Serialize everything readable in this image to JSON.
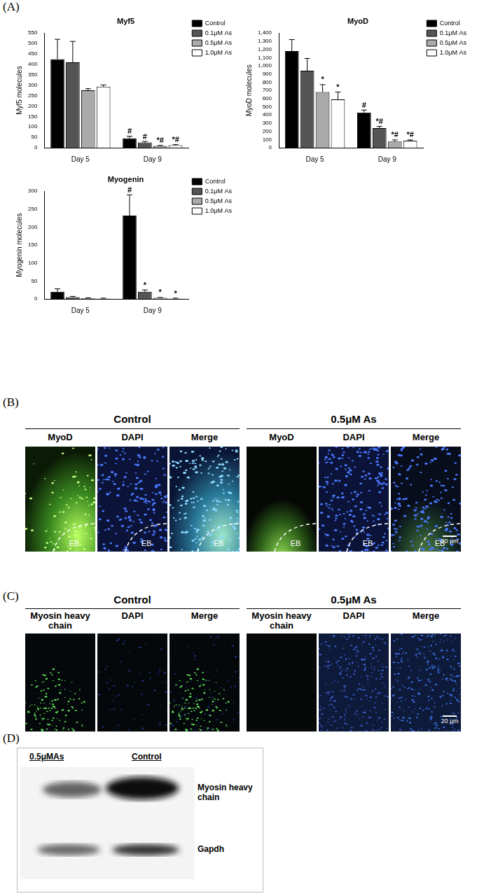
{
  "panel_labels": [
    "(A)",
    "(B)",
    "(C)",
    "(D)"
  ],
  "chart_data": [
    {
      "type": "bar",
      "title": "Myf5",
      "ylabel": "Myf5 molecules",
      "categories": [
        "Day 5",
        "Day 9"
      ],
      "series": [
        {
          "name": "Control",
          "color": "#000000",
          "values": [
            425,
            45
          ],
          "errors": [
            95,
            10
          ],
          "annotations": [
            null,
            "#"
          ]
        },
        {
          "name": "0.1μM As",
          "color": "#555555",
          "values": [
            410,
            25
          ],
          "errors": [
            100,
            5
          ],
          "annotations": [
            null,
            "#"
          ]
        },
        {
          "name": "0.5μM As",
          "color": "#aaaaaa",
          "values": [
            275,
            8
          ],
          "errors": [
            8,
            3
          ],
          "annotations": [
            null,
            "*#"
          ]
        },
        {
          "name": "1.0μM As",
          "color": "#ffffff",
          "values": [
            293,
            12
          ],
          "errors": [
            8,
            3
          ],
          "annotations": [
            null,
            "*#"
          ]
        }
      ],
      "ylim": [
        0,
        550
      ],
      "yticks": [
        0,
        50,
        100,
        150,
        200,
        250,
        300,
        350,
        400,
        450,
        500,
        550
      ],
      "grid": false,
      "legend": "right"
    },
    {
      "type": "bar",
      "title": "MyoD",
      "ylabel": "MyoD molecules",
      "categories": [
        "Day 5",
        "Day 9"
      ],
      "series": [
        {
          "name": "Control",
          "color": "#000000",
          "values": [
            1180,
            430
          ],
          "errors": [
            140,
            30
          ],
          "annotations": [
            null,
            "#"
          ]
        },
        {
          "name": "0.1μM As",
          "color": "#555555",
          "values": [
            940,
            240
          ],
          "errors": [
            150,
            20
          ],
          "annotations": [
            null,
            "*#"
          ]
        },
        {
          "name": "0.5μM As",
          "color": "#aaaaaa",
          "values": [
            680,
            75
          ],
          "errors": [
            90,
            20
          ],
          "annotations": [
            "*",
            "*#"
          ]
        },
        {
          "name": "1.0μM As",
          "color": "#ffffff",
          "values": [
            590,
            85
          ],
          "errors": [
            90,
            10
          ],
          "annotations": [
            "*",
            "*#"
          ]
        }
      ],
      "ylim": [
        0,
        1400
      ],
      "yticks": [
        0,
        100,
        200,
        300,
        400,
        500,
        600,
        700,
        800,
        900,
        1000,
        1100,
        1200,
        1300,
        1400
      ],
      "grid": false,
      "legend": "right"
    },
    {
      "type": "bar",
      "title": "Myogenin",
      "ylabel": "Myogenin molecules",
      "categories": [
        "Day 5",
        "Day 9"
      ],
      "series": [
        {
          "name": "Control",
          "color": "#000000",
          "values": [
            20,
            232
          ],
          "errors": [
            8,
            58
          ],
          "annotations": [
            null,
            "#"
          ]
        },
        {
          "name": "0.1μM As",
          "color": "#555555",
          "values": [
            5,
            20
          ],
          "errors": [
            2,
            5
          ],
          "annotations": [
            null,
            "*"
          ]
        },
        {
          "name": "0.5μM As",
          "color": "#aaaaaa",
          "values": [
            2,
            3
          ],
          "errors": [
            1,
            1
          ],
          "annotations": [
            null,
            "*"
          ]
        },
        {
          "name": "1.0μM As",
          "color": "#ffffff",
          "values": [
            1,
            1
          ],
          "errors": [
            1,
            1
          ],
          "annotations": [
            null,
            "*"
          ]
        }
      ],
      "ylim": [
        0,
        300
      ],
      "yticks": [
        0,
        50,
        100,
        150,
        200,
        250,
        300
      ],
      "grid": false,
      "legend": "right"
    }
  ],
  "panel_b": {
    "groups": [
      {
        "title": "Control",
        "channels": [
          "MyoD",
          "DAPI",
          "Merge"
        ]
      },
      {
        "title": "0.5μM As",
        "channels": [
          "MyoD",
          "DAPI",
          "Merge"
        ]
      }
    ],
    "region_label": "EB",
    "scale_bar": "20 μm"
  },
  "panel_c": {
    "groups": [
      {
        "title": "Control",
        "channels": [
          "Myosin heavy chain",
          "DAPI",
          "Merge"
        ]
      },
      {
        "title": "0.5μM As",
        "channels": [
          "Myosin heavy chain",
          "DAPI",
          "Merge"
        ]
      }
    ],
    "scale_bar": "20 μm"
  },
  "panel_d": {
    "lanes": [
      "0.5μMAs",
      "Control"
    ],
    "bands": [
      "Myosin heavy chain",
      "Gapdh"
    ]
  }
}
